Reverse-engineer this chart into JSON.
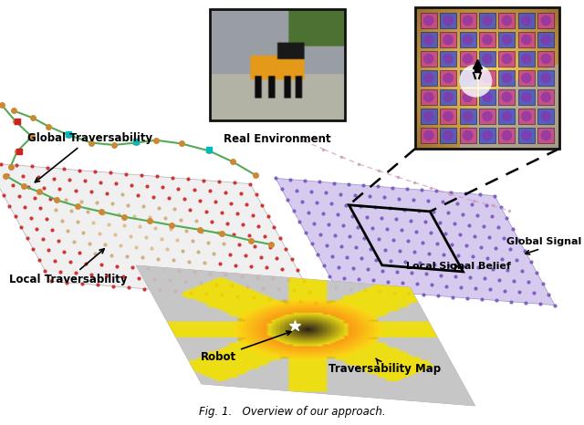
{
  "bg_color": "#ffffff",
  "caption": "Fig. 1.   Overview of our approach.",
  "labels": {
    "global_traversability": "Global Traversability",
    "local_traversability": "Local Traversability",
    "real_environment": "Real Environment",
    "global_signal_belief": "Global Signal Belief",
    "local_signal_belief": "Local Signal Belief",
    "robot": "Robot",
    "traversability_map": "Traversability Map"
  },
  "colors": {
    "red_dot": "#cc2222",
    "orange_dot": "#cc8833",
    "green_path": "#55aa55",
    "cyan_dot": "#00bbbb",
    "purple_dot": "#7755bb",
    "pink_path": "#cc99bb",
    "trav_gray": "#c8c8c8",
    "trav_yellow": "#ffee00",
    "trav_dark": "#221100",
    "trav_orange": "#cc5500",
    "inset_bg_warm": "#ffe8aa",
    "inset_blue": "#4455cc",
    "inset_pink": "#cc4488",
    "inset_purple": "#8833aa"
  },
  "fig_width": 6.4,
  "fig_height": 4.66,
  "dpi": 100
}
